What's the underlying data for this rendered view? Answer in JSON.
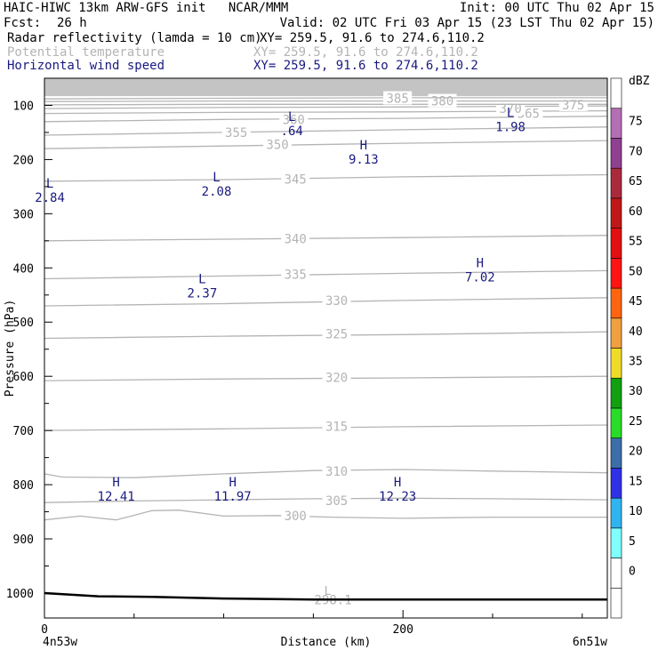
{
  "header": {
    "model": "HAIC-HIWC 13km ARW-GFS init   NCAR/MMM",
    "init": "Init: 00 UTC Thu 02 Apr 15",
    "fcst_label": "Fcst:",
    "fcst_value": "26 h",
    "valid": "Valid: 02 UTC Fri 03 Apr 15 (23 LST Thu 02 Apr 15)"
  },
  "fields": [
    {
      "name": "Radar reflectivity (lamda = 10 cm)",
      "xy": "XY= 259.5, 91.6 to 274.6,110.2",
      "color": "#000000"
    },
    {
      "name": "Potential temperature",
      "xy": "XY= 259.5, 91.6 to 274.6,110.2",
      "color": "#b4b4b4"
    },
    {
      "name": "Horizontal wind speed",
      "xy": "XY= 259.5, 91.6 to 274.6,110.2",
      "color": "#1a1a80"
    }
  ],
  "chart_data": {
    "type": "cross-section",
    "xlabel": "Distance (km)",
    "ylabel": "Pressure (hPa)",
    "xlim": [
      0,
      314
    ],
    "ylim": [
      1046,
      50
    ],
    "x_ticks": [
      {
        "v": 0,
        "label": "0"
      },
      {
        "v": 200,
        "label": "200"
      }
    ],
    "x_minor": [
      50,
      100,
      150,
      250,
      300
    ],
    "y_ticks": [
      100,
      200,
      300,
      400,
      500,
      600,
      700,
      800,
      900,
      1000
    ],
    "x_endpoints": [
      "4n53w",
      "6n51w"
    ],
    "theta_contours": [
      {
        "value": 300,
        "label": "300",
        "pts": [
          [
            0,
            865
          ],
          [
            20,
            858
          ],
          [
            40,
            865
          ],
          [
            60,
            848
          ],
          [
            75,
            847
          ],
          [
            100,
            858
          ],
          [
            130,
            857
          ],
          [
            160,
            860
          ],
          [
            200,
            862
          ],
          [
            250,
            860
          ],
          [
            314,
            860
          ]
        ],
        "label_at": [
          140,
          857
        ]
      },
      {
        "value": 305,
        "label": "305",
        "pts": [
          [
            0,
            833
          ],
          [
            50,
            830
          ],
          [
            100,
            828
          ],
          [
            150,
            826
          ],
          [
            200,
            825
          ],
          [
            250,
            826
          ],
          [
            314,
            828
          ]
        ],
        "label_at": [
          163,
          829
        ]
      },
      {
        "value": 310,
        "label": "310",
        "pts": [
          [
            0,
            780
          ],
          [
            10,
            786
          ],
          [
            50,
            787
          ],
          [
            100,
            780
          ],
          [
            150,
            774
          ],
          [
            200,
            772
          ],
          [
            250,
            775
          ],
          [
            314,
            778
          ]
        ],
        "label_at": [
          163,
          775
        ]
      },
      {
        "value": 315,
        "label": "315",
        "pts": [
          [
            0,
            700
          ],
          [
            100,
            697
          ],
          [
            200,
            693
          ],
          [
            314,
            690
          ]
        ],
        "label_at": [
          163,
          692
        ]
      },
      {
        "value": 320,
        "label": "320",
        "pts": [
          [
            0,
            608
          ],
          [
            100,
            605
          ],
          [
            200,
            603
          ],
          [
            314,
            600
          ]
        ],
        "label_at": [
          163,
          602
        ]
      },
      {
        "value": 325,
        "label": "325",
        "pts": [
          [
            0,
            530
          ],
          [
            100,
            526
          ],
          [
            200,
            523
          ],
          [
            314,
            518
          ]
        ],
        "label_at": [
          163,
          522
        ]
      },
      {
        "value": 330,
        "label": "330",
        "pts": [
          [
            0,
            470
          ],
          [
            100,
            466
          ],
          [
            200,
            460
          ],
          [
            314,
            455
          ]
        ],
        "label_at": [
          163,
          460
        ]
      },
      {
        "value": 335,
        "label": "335",
        "pts": [
          [
            0,
            420
          ],
          [
            100,
            415
          ],
          [
            200,
            410
          ],
          [
            314,
            405
          ]
        ],
        "label_at": [
          140,
          412
        ]
      },
      {
        "value": 340,
        "label": "340",
        "pts": [
          [
            0,
            350
          ],
          [
            100,
            347
          ],
          [
            200,
            344
          ],
          [
            314,
            340
          ]
        ],
        "label_at": [
          140,
          346
        ]
      },
      {
        "value": 345,
        "label": "345",
        "pts": [
          [
            0,
            240
          ],
          [
            100,
            237
          ],
          [
            200,
            232
          ],
          [
            314,
            228
          ]
        ],
        "label_at": [
          140,
          236
        ]
      },
      {
        "value": 350,
        "label": "350",
        "pts": [
          [
            0,
            180
          ],
          [
            100,
            175
          ],
          [
            200,
            170
          ],
          [
            314,
            165
          ]
        ],
        "label_at": [
          130,
          172
        ]
      },
      {
        "value": 355,
        "label": "355",
        "pts": [
          [
            0,
            155
          ],
          [
            100,
            150
          ],
          [
            200,
            145
          ],
          [
            314,
            140
          ]
        ],
        "label_at": [
          107,
          150
        ]
      },
      {
        "value": 360,
        "label": "360",
        "pts": [
          [
            0,
            130
          ],
          [
            100,
            126
          ],
          [
            200,
            124
          ],
          [
            314,
            120
          ]
        ],
        "label_at": [
          139,
          126
        ]
      },
      {
        "value": 365,
        "label": "365",
        "pts": [
          [
            0,
            115
          ],
          [
            100,
            113
          ],
          [
            200,
            112
          ],
          [
            314,
            110
          ]
        ],
        "label_at": [
          270,
          115
        ]
      },
      {
        "value": 370,
        "label": "370",
        "pts": [
          [
            0,
            106
          ],
          [
            100,
            104
          ],
          [
            200,
            103
          ],
          [
            314,
            101
          ]
        ],
        "label_at": [
          260,
          106
        ]
      },
      {
        "value": 375,
        "label": "375",
        "pts": [
          [
            0,
            99
          ],
          [
            100,
            98
          ],
          [
            200,
            98
          ],
          [
            314,
            98
          ]
        ],
        "label_at": [
          295,
          99
        ]
      },
      {
        "value": 380,
        "label": "380",
        "pts": [
          [
            0,
            93
          ],
          [
            100,
            92
          ],
          [
            200,
            92
          ],
          [
            314,
            92
          ]
        ],
        "label_at": [
          222,
          92
        ]
      },
      {
        "value": 385,
        "label": "385",
        "pts": [
          [
            0,
            88
          ],
          [
            100,
            87
          ],
          [
            200,
            86
          ],
          [
            314,
            86
          ]
        ],
        "label_at": [
          197,
          87
        ]
      }
    ],
    "theta_extra_label": {
      "label": "298.1",
      "x": 161,
      "p": 1012
    },
    "wind_extrema": [
      {
        "type": "L",
        "value": "2.84",
        "x": 3,
        "p": 258
      },
      {
        "type": "L",
        "value": "2.08",
        "x": 96,
        "p": 247
      },
      {
        "type": "L",
        "value": "2.37",
        "x": 88,
        "p": 435
      },
      {
        "type": "L",
        "value": ".64",
        "x": 138,
        "p": 135
      },
      {
        "type": "H",
        "value": "9.13",
        "x": 178,
        "p": 188
      },
      {
        "type": "L",
        "value": "1.98",
        "x": 260,
        "p": 128
      },
      {
        "type": "H",
        "value": "7.02",
        "x": 243,
        "p": 405
      },
      {
        "type": "H",
        "value": "12.41",
        "x": 40,
        "p": 810
      },
      {
        "type": "H",
        "value": "11.97",
        "x": 105,
        "p": 810
      },
      {
        "type": "H",
        "value": "12.23",
        "x": 197,
        "p": 810
      }
    ],
    "theta_extrema": [
      {
        "type": "L",
        "x": 158,
        "p": 995
      }
    ],
    "terrain": [
      [
        0,
        1000
      ],
      [
        30,
        1006
      ],
      [
        60,
        1007
      ],
      [
        100,
        1010
      ],
      [
        150,
        1012
      ],
      [
        200,
        1012
      ],
      [
        250,
        1012
      ],
      [
        314,
        1012
      ]
    ],
    "colorbar": {
      "title": "dBZ",
      "colors": [
        "#ffffff",
        "#ffffff",
        "#80ffff",
        "#30b4f0",
        "#3030e6",
        "#3c6ea8",
        "#28dc28",
        "#10a010",
        "#f0dc28",
        "#f0a040",
        "#ff6410",
        "#ff1414",
        "#e21010",
        "#c01818",
        "#aa2a3c",
        "#904090",
        "#b46eb4",
        "#ffffff"
      ],
      "labels": [
        "0",
        "5",
        "10",
        "15",
        "20",
        "25",
        "30",
        "35",
        "40",
        "45",
        "50",
        "55",
        "60",
        "65",
        "70",
        "75"
      ]
    }
  }
}
